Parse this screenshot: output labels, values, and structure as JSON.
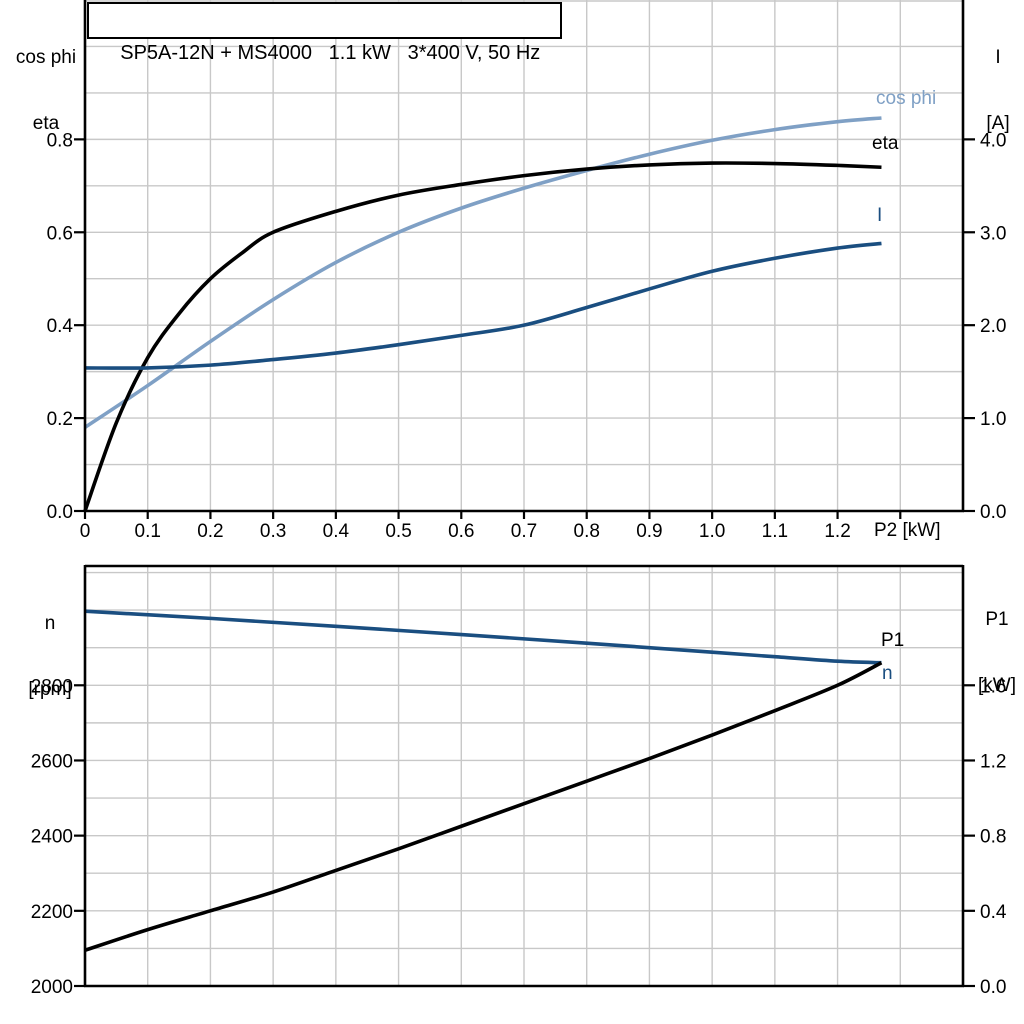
{
  "palette": {
    "light_blue": "#7FA0C5",
    "dark_blue": "#1A4E80",
    "black": "#000000",
    "grid": "#C8C8C8"
  },
  "chart_data": [
    {
      "type": "line",
      "title": "SP5A-12N + MS4000   1.1 kW   3*400 V, 50 Hz",
      "xlabel": "P2 [kW]",
      "x_range": [
        0,
        1.4
      ],
      "grid": true,
      "x_ticks": [
        [
          0,
          "0"
        ],
        [
          0.1,
          "0.1"
        ],
        [
          0.2,
          "0.2"
        ],
        [
          0.3,
          "0.3"
        ],
        [
          0.4,
          "0.4"
        ],
        [
          0.5,
          "0.5"
        ],
        [
          0.6,
          "0.6"
        ],
        [
          0.7,
          "0.7"
        ],
        [
          0.8,
          "0.8"
        ],
        [
          0.9,
          "0.9"
        ],
        [
          1.0,
          "1.0"
        ],
        [
          1.1,
          "1.1"
        ],
        [
          1.2,
          "1.2"
        ]
      ],
      "left_axis": {
        "label_lines": [
          "cos phi",
          "eta"
        ],
        "range": [
          0,
          1.1
        ],
        "grid_step": 0.1,
        "ticks": [
          [
            0.0,
            "0.0"
          ],
          [
            0.2,
            "0.2"
          ],
          [
            0.4,
            "0.4"
          ],
          [
            0.6,
            "0.6"
          ],
          [
            0.8,
            "0.8"
          ]
        ]
      },
      "right_axis": {
        "label_lines": [
          "I",
          "[A]"
        ],
        "range": [
          0,
          5.5
        ],
        "ticks": [
          [
            0.0,
            "0.0"
          ],
          [
            1.0,
            "1.0"
          ],
          [
            2.0,
            "2.0"
          ],
          [
            3.0,
            "3.0"
          ],
          [
            4.0,
            "4.0"
          ]
        ]
      },
      "series": [
        {
          "name": "cos phi",
          "axis": "left",
          "color": "#7FA0C5",
          "x": [
            0,
            0.1,
            0.2,
            0.3,
            0.4,
            0.5,
            0.6,
            0.7,
            0.8,
            0.9,
            1.0,
            1.1,
            1.2,
            1.27
          ],
          "y": [
            0.18,
            0.27,
            0.365,
            0.455,
            0.535,
            0.6,
            0.652,
            0.695,
            0.733,
            0.768,
            0.798,
            0.821,
            0.838,
            0.846
          ]
        },
        {
          "name": "eta",
          "axis": "left",
          "color": "#000000",
          "x": [
            0,
            0.05,
            0.1,
            0.15,
            0.2,
            0.25,
            0.3,
            0.4,
            0.5,
            0.6,
            0.7,
            0.8,
            0.9,
            1.0,
            1.1,
            1.2,
            1.27
          ],
          "y": [
            0,
            0.19,
            0.33,
            0.425,
            0.5,
            0.555,
            0.6,
            0.645,
            0.68,
            0.703,
            0.722,
            0.736,
            0.745,
            0.749,
            0.748,
            0.744,
            0.74
          ]
        },
        {
          "name": "I",
          "axis": "right",
          "color": "#1A4E80",
          "x": [
            0,
            0.1,
            0.2,
            0.3,
            0.4,
            0.5,
            0.6,
            0.7,
            0.8,
            0.9,
            1.0,
            1.1,
            1.2,
            1.27
          ],
          "y": [
            1.54,
            1.54,
            1.57,
            1.63,
            1.7,
            1.79,
            1.89,
            2.0,
            2.19,
            2.39,
            2.58,
            2.72,
            2.83,
            2.88
          ]
        }
      ]
    },
    {
      "type": "line",
      "title": "",
      "xlabel": "",
      "x_range": [
        0,
        1.4
      ],
      "grid": true,
      "x_ticks": [],
      "left_axis": {
        "label_lines": [
          "n",
          "[rpm]"
        ],
        "range": [
          2000,
          3120
        ],
        "grid_step": 100,
        "ticks": [
          [
            2000,
            "2000"
          ],
          [
            2200,
            "2200"
          ],
          [
            2400,
            "2400"
          ],
          [
            2600,
            "2600"
          ],
          [
            2800,
            "2800"
          ]
        ]
      },
      "right_axis": {
        "label_lines": [
          "P1",
          "[kW]"
        ],
        "range": [
          0,
          2.24
        ],
        "ticks": [
          [
            0.0,
            "0.0"
          ],
          [
            0.4,
            "0.4"
          ],
          [
            0.8,
            "0.8"
          ],
          [
            1.2,
            "1.2"
          ],
          [
            1.6,
            "1.6"
          ]
        ]
      },
      "series": [
        {
          "name": "n",
          "axis": "left",
          "color": "#1A4E80",
          "x": [
            0,
            0.2,
            0.4,
            0.6,
            0.8,
            1.0,
            1.1,
            1.2,
            1.27
          ],
          "y": [
            2997,
            2978,
            2957,
            2935,
            2912,
            2888,
            2876,
            2864,
            2860
          ]
        },
        {
          "name": "P1",
          "axis": "right",
          "color": "#000000",
          "x": [
            0,
            0.1,
            0.2,
            0.3,
            0.4,
            0.5,
            0.6,
            0.7,
            0.8,
            0.9,
            1.0,
            1.1,
            1.2,
            1.27
          ],
          "y": [
            0.19,
            0.3,
            0.4,
            0.5,
            0.615,
            0.73,
            0.85,
            0.97,
            1.09,
            1.21,
            1.335,
            1.465,
            1.6,
            1.72
          ]
        }
      ]
    }
  ]
}
